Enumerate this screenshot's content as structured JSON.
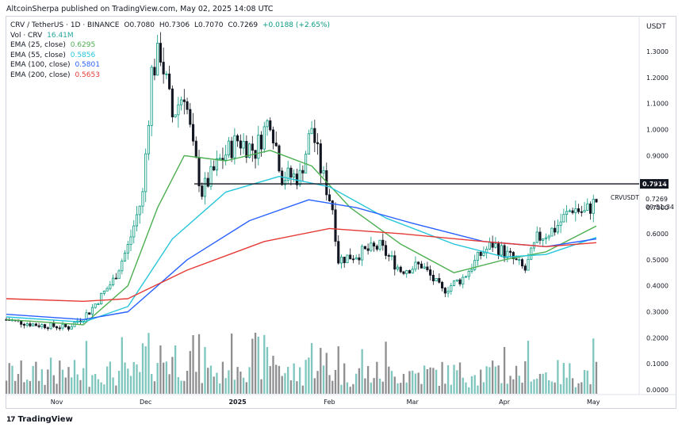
{
  "header": {
    "publisher_line": "AltcoinSherpa published on TradingView.com, May 02, 2025 14:08 UTC"
  },
  "legend": {
    "symbol": "CRV / TetherUS · 1D · BINANCE",
    "open": "O0.7080",
    "high": "H0.7306",
    "low": "L0.7070",
    "close": "C0.7269",
    "change": "+0.0188 (+2.65%)",
    "change_color": "#089981",
    "volume_label": "Vol · CRV",
    "volume_value": "16.41M",
    "ema25_label": "EMA (25, close)",
    "ema25_value": "0.6295",
    "ema25_color": "#4caf50",
    "ema55_label": "EMA (55, close)",
    "ema55_value": "0.5856",
    "ema55_color": "#26c6da",
    "ema100_label": "EMA (100, close)",
    "ema100_value": "0.5801",
    "ema100_color": "#2962ff",
    "ema200_label": "EMA (200, close)",
    "ema200_value": "0.5653",
    "ema200_color": "#e53935"
  },
  "price_axis": {
    "currency": "USDT",
    "ticks": [
      "1.3000",
      "1.2000",
      "1.1000",
      "1.0000",
      "0.9000",
      "0.8000",
      "0.7000",
      "0.6000",
      "0.5000",
      "0.4000",
      "0.3000",
      "0.2000",
      "0.1000",
      "0.0000"
    ],
    "hline_label": "0.7914",
    "last_price": "0.7269",
    "countdown": "09:51:34",
    "symbol_tag": "CRVUSDT"
  },
  "time_axis": {
    "labels": [
      "Nov",
      "Dec",
      "2025",
      "Feb",
      "Mar",
      "Apr",
      "May"
    ]
  },
  "footer": {
    "brand": "TradingView",
    "logo": "17"
  },
  "chart_data": {
    "type": "candlestick",
    "x_range": [
      "2024-10-15",
      "2025-05-02"
    ],
    "ylim": [
      0.0,
      1.35
    ],
    "horizontal_line": 0.7914,
    "price_points": [
      {
        "date": "2024-10-15",
        "close": 0.27
      },
      {
        "date": "2024-10-25",
        "close": 0.25
      },
      {
        "date": "2024-11-05",
        "close": 0.24
      },
      {
        "date": "2024-11-12",
        "close": 0.3
      },
      {
        "date": "2024-11-20",
        "close": 0.42
      },
      {
        "date": "2024-11-25",
        "close": 0.55
      },
      {
        "date": "2024-11-30",
        "close": 0.75
      },
      {
        "date": "2024-12-03",
        "close": 1.22
      },
      {
        "date": "2024-12-06",
        "close": 1.3
      },
      {
        "date": "2024-12-10",
        "close": 1.05
      },
      {
        "date": "2024-12-14",
        "close": 1.15
      },
      {
        "date": "2024-12-17",
        "close": 0.92
      },
      {
        "date": "2024-12-20",
        "close": 0.76
      },
      {
        "date": "2024-12-26",
        "close": 0.88
      },
      {
        "date": "2025-01-01",
        "close": 0.96
      },
      {
        "date": "2025-01-07",
        "close": 0.92
      },
      {
        "date": "2025-01-12",
        "close": 1.05
      },
      {
        "date": "2025-01-16",
        "close": 0.82
      },
      {
        "date": "2025-01-22",
        "close": 0.82
      },
      {
        "date": "2025-01-26",
        "close": 1.01
      },
      {
        "date": "2025-01-29",
        "close": 0.85
      },
      {
        "date": "2025-02-02",
        "close": 0.7
      },
      {
        "date": "2025-02-04",
        "close": 0.5
      },
      {
        "date": "2025-02-10",
        "close": 0.52
      },
      {
        "date": "2025-02-18",
        "close": 0.55
      },
      {
        "date": "2025-02-25",
        "close": 0.46
      },
      {
        "date": "2025-03-04",
        "close": 0.48
      },
      {
        "date": "2025-03-11",
        "close": 0.38
      },
      {
        "date": "2025-03-18",
        "close": 0.43
      },
      {
        "date": "2025-03-24",
        "close": 0.52
      },
      {
        "date": "2025-03-28",
        "close": 0.56
      },
      {
        "date": "2025-04-03",
        "close": 0.51
      },
      {
        "date": "2025-04-08",
        "close": 0.46
      },
      {
        "date": "2025-04-12",
        "close": 0.58
      },
      {
        "date": "2025-04-18",
        "close": 0.62
      },
      {
        "date": "2025-04-24",
        "close": 0.7
      },
      {
        "date": "2025-04-28",
        "close": 0.68
      },
      {
        "date": "2025-05-02",
        "close": 0.7269
      }
    ],
    "ema_lines": [
      {
        "name": "EMA (25, close)",
        "points": [
          {
            "date": "2024-10-15",
            "value": 0.27
          },
          {
            "date": "2024-11-10",
            "value": 0.25
          },
          {
            "date": "2024-11-25",
            "value": 0.4
          },
          {
            "date": "2024-12-05",
            "value": 0.7
          },
          {
            "date": "2024-12-14",
            "value": 0.9
          },
          {
            "date": "2024-12-28",
            "value": 0.88
          },
          {
            "date": "2025-01-12",
            "value": 0.92
          },
          {
            "date": "2025-01-26",
            "value": 0.86
          },
          {
            "date": "2025-02-08",
            "value": 0.7
          },
          {
            "date": "2025-02-25",
            "value": 0.56
          },
          {
            "date": "2025-03-15",
            "value": 0.45
          },
          {
            "date": "2025-04-01",
            "value": 0.5
          },
          {
            "date": "2025-04-15",
            "value": 0.53
          },
          {
            "date": "2025-05-02",
            "value": 0.6295
          }
        ]
      },
      {
        "name": "EMA (55, close)",
        "points": [
          {
            "date": "2024-10-15",
            "value": 0.28
          },
          {
            "date": "2024-11-10",
            "value": 0.26
          },
          {
            "date": "2024-11-25",
            "value": 0.32
          },
          {
            "date": "2024-12-10",
            "value": 0.58
          },
          {
            "date": "2024-12-28",
            "value": 0.76
          },
          {
            "date": "2025-01-15",
            "value": 0.82
          },
          {
            "date": "2025-02-01",
            "value": 0.78
          },
          {
            "date": "2025-02-20",
            "value": 0.66
          },
          {
            "date": "2025-03-15",
            "value": 0.56
          },
          {
            "date": "2025-04-01",
            "value": 0.51
          },
          {
            "date": "2025-04-15",
            "value": 0.52
          },
          {
            "date": "2025-05-02",
            "value": 0.5856
          }
        ]
      },
      {
        "name": "EMA (100, close)",
        "points": [
          {
            "date": "2024-10-15",
            "value": 0.29
          },
          {
            "date": "2024-11-10",
            "value": 0.27
          },
          {
            "date": "2024-11-25",
            "value": 0.3
          },
          {
            "date": "2024-12-15",
            "value": 0.5
          },
          {
            "date": "2025-01-05",
            "value": 0.65
          },
          {
            "date": "2025-01-25",
            "value": 0.73
          },
          {
            "date": "2025-02-10",
            "value": 0.7
          },
          {
            "date": "2025-03-01",
            "value": 0.64
          },
          {
            "date": "2025-03-25",
            "value": 0.57
          },
          {
            "date": "2025-04-15",
            "value": 0.55
          },
          {
            "date": "2025-05-02",
            "value": 0.5801
          }
        ]
      },
      {
        "name": "EMA (200, close)",
        "points": [
          {
            "date": "2024-10-15",
            "value": 0.35
          },
          {
            "date": "2024-11-10",
            "value": 0.34
          },
          {
            "date": "2024-11-25",
            "value": 0.35
          },
          {
            "date": "2024-12-15",
            "value": 0.46
          },
          {
            "date": "2025-01-10",
            "value": 0.57
          },
          {
            "date": "2025-02-01",
            "value": 0.62
          },
          {
            "date": "2025-02-25",
            "value": 0.6
          },
          {
            "date": "2025-03-25",
            "value": 0.57
          },
          {
            "date": "2025-04-15",
            "value": 0.55
          },
          {
            "date": "2025-05-02",
            "value": 0.5653
          }
        ]
      }
    ],
    "colors": {
      "up": "#089981",
      "down": "#131722",
      "volume_up": "#7fc6be",
      "volume_down": "#8f8f92"
    }
  }
}
